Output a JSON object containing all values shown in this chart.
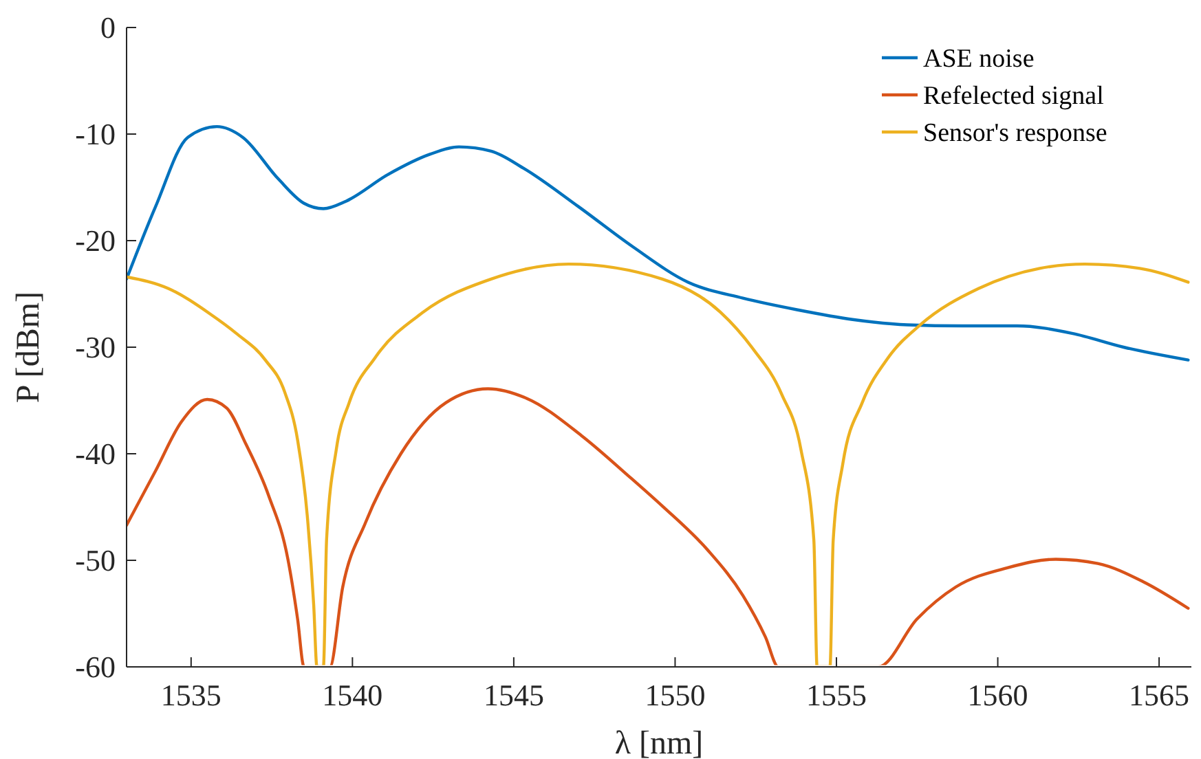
{
  "chart_data": {
    "type": "line",
    "xlabel": "λ [nm]",
    "ylabel": "P [dBm]",
    "xlim": [
      1533,
      1566
    ],
    "xticks": [
      1535,
      1540,
      1545,
      1550,
      1555,
      1560,
      1565
    ],
    "ylim": [
      -60,
      0
    ],
    "yticks": [
      -60,
      -50,
      -40,
      -30,
      -20,
      -10,
      0
    ],
    "legend": "top right",
    "grid": false,
    "line_style": "solid",
    "series": [
      {
        "name": "ASE noise",
        "color": "#0072bd",
        "x": [
          1533,
          1533.9,
          1534.9,
          1535.8,
          1536.6,
          1537.7,
          1538.5,
          1539.1,
          1539.8,
          1541.1,
          1542.4,
          1543.3,
          1544.3,
          1545.3,
          1547.0,
          1548.7,
          1550.4,
          1552.1,
          1553.8,
          1555.5,
          1557.2,
          1558.9,
          1560.6,
          1562.3,
          1563.9,
          1565.9
        ],
        "values": [
          -23.6,
          -16.8,
          -10.3,
          -9.3,
          -10.3,
          -14.2,
          -16.5,
          -17.0,
          -16.3,
          -13.8,
          -11.9,
          -11.2,
          -11.6,
          -13.2,
          -16.8,
          -20.6,
          -23.9,
          -25.4,
          -26.5,
          -27.4,
          -27.9,
          -28.0,
          -28.0,
          -28.7,
          -30.0,
          -31.2
        ]
      },
      {
        "name": "Refelected signal",
        "color": "#d95319",
        "x": [
          1533,
          1533.9,
          1534.7,
          1535.5,
          1536.1,
          1536.7,
          1537.4,
          1538.0,
          1538.3,
          1538.5,
          1539.3,
          1539.7,
          1540.4,
          1541.5,
          1542.9,
          1544.2,
          1545.4,
          1547.1,
          1548.6,
          1549.6,
          1551.0,
          1552.1,
          1552.8,
          1553.2,
          1556.3,
          1557.5,
          1558.7,
          1560.3,
          1561.8,
          1563.1,
          1564.5,
          1565.9
        ],
        "values": [
          -46.7,
          -41.6,
          -37.0,
          -34.9,
          -35.7,
          -39.1,
          -43.9,
          -49.9,
          -55.5,
          -60,
          -60,
          -52.5,
          -46.5,
          -40.0,
          -35.2,
          -33.9,
          -34.8,
          -38.3,
          -42.2,
          -44.9,
          -49.0,
          -53.3,
          -57.2,
          -60,
          -60,
          -55.5,
          -52.5,
          -50.7,
          -49.9,
          -50.3,
          -52.0,
          -54.5
        ]
      },
      {
        "name": "Sensor's response",
        "color": "#edb120",
        "x": [
          1533,
          1534.3,
          1535.6,
          1536.4,
          1537.3,
          1537.9,
          1538.3,
          1538.6,
          1538.8,
          1538.9,
          1539.1,
          1539.2,
          1539.5,
          1539.9,
          1540.7,
          1542.2,
          1544.3,
          1546.7,
          1549.6,
          1551.4,
          1552.4,
          1553.3,
          1553.9,
          1554.3,
          1554.4,
          1554.8,
          1554.9,
          1555.2,
          1555.8,
          1556.6,
          1557.6,
          1559.4,
          1561.3,
          1562.7,
          1564.4,
          1565.9
        ],
        "values": [
          -23.4,
          -24.5,
          -26.9,
          -28.7,
          -31.2,
          -34.2,
          -38.7,
          -45.8,
          -54.2,
          -60,
          -60,
          -48.0,
          -39.6,
          -35.2,
          -31.0,
          -26.7,
          -23.6,
          -22.2,
          -23.6,
          -26.7,
          -30.1,
          -34.4,
          -39.6,
          -48.1,
          -60,
          -60,
          -48.1,
          -40.9,
          -35.2,
          -31.0,
          -27.9,
          -24.5,
          -22.6,
          -22.2,
          -22.6,
          -23.9
        ]
      }
    ]
  }
}
